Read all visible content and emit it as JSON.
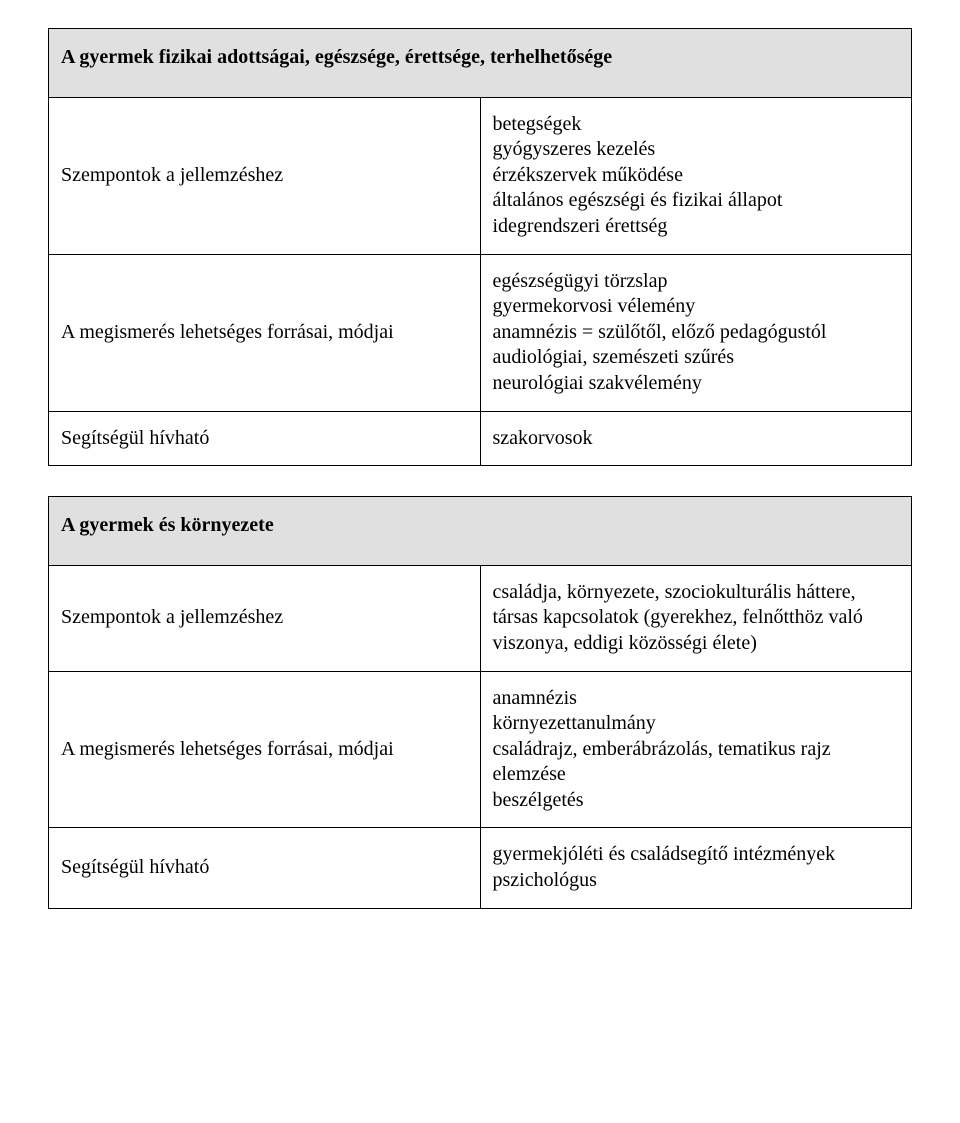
{
  "section1": {
    "title": "A gyermek fizikai adottságai, egészsége, érettsége, terhelhetősége",
    "rows": [
      {
        "label": "Szempontok a jellemzéshez",
        "value": "betegségek\ngyógyszeres kezelés\nérzékszervek működése\náltalános egészségi és fizikai állapot\nidegrendszeri érettség",
        "justify": false
      },
      {
        "label": "A megismerés lehetséges forrásai, módjai",
        "value": "egészségügyi törzslap\ngyermekorvosi vélemény\nanamnézis = szülőtől, előző pedagógustól\naudiológiai, szemészeti szűrés\nneurológiai szakvélemény",
        "justify": false
      },
      {
        "label": "Segítségül hívható",
        "value": "szakorvosok",
        "justify": false
      }
    ]
  },
  "section2": {
    "title": "A gyermek és környezete",
    "rows": [
      {
        "label": "Szempontok a jellemzéshez",
        "value": "családja, környezete, szociokulturális háttere, társas kapcsolatok (gyerekhez, felnőtthöz való viszonya, eddigi közösségi élete)",
        "justify": true
      },
      {
        "label": "A megismerés lehetséges forrásai, módjai",
        "value": "anamnézis\nkörnyezettanulmány\ncsaládrajz, emberábrázolás, tematikus rajz elemzése\nbeszélgetés",
        "justify": false
      },
      {
        "label": "Segítségül hívható",
        "value": "gyermekjóléti és családsegítő intézmények\npszichológus",
        "justify": false
      }
    ]
  },
  "colors": {
    "header_bg": "#e0e0e0",
    "border": "#000000",
    "background": "#ffffff",
    "text": "#000000"
  },
  "typography": {
    "base_font_family": "Times New Roman",
    "base_font_size_pt": 15,
    "heading_weight": "bold"
  }
}
